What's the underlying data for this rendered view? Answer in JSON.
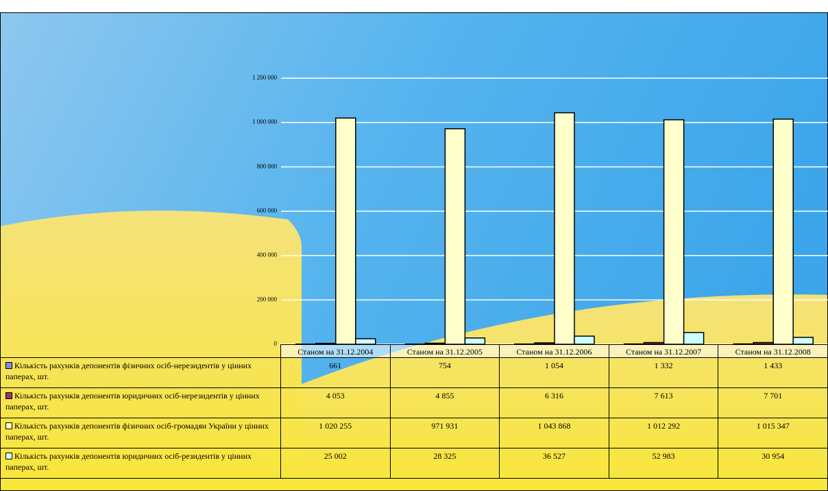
{
  "chart_data": {
    "type": "bar",
    "categories": [
      "Станом на 31.12.2004",
      "Станом на 31.12.2005",
      "Станом на 31.12.2006",
      "Станом на 31.12.2007",
      "Станом на 31.12.2008"
    ],
    "series": [
      {
        "name": "Кількість рахунків депонентів фізичних осіб-нерезидентів у цінних паперах, шт.",
        "color": "#7f8fdf",
        "values": [
          661,
          754,
          1054,
          1332,
          1433
        ],
        "value_labels": [
          "661",
          "754",
          "1 054",
          "1 332",
          "1 433"
        ]
      },
      {
        "name": "Кількість рахунків депонентів юридичних осіб-нерезидентів у цінних паперах, шт.",
        "color": "#993366",
        "values": [
          4053,
          4855,
          6316,
          7613,
          7701
        ],
        "value_labels": [
          "4 053",
          "4 855",
          "6 316",
          "7 613",
          "7 701"
        ]
      },
      {
        "name": "Кількість рахунків депонентів фізичних осіб-громадян України у цінних паперах, шт.",
        "color": "#ffffcc",
        "values": [
          1020255,
          971931,
          1043868,
          1012292,
          1015347
        ],
        "value_labels": [
          "1 020 255",
          "971 931",
          "1 043 868",
          "1 012 292",
          "1 015 347"
        ]
      },
      {
        "name": "Кількість рахунків депонентів юридичних осіб-резидентів у цінних паперах, шт.",
        "color": "#ccffff",
        "values": [
          25002,
          28325,
          36527,
          52983,
          30954
        ],
        "value_labels": [
          "25 002",
          "28 325",
          "36 527",
          "52 983",
          "30 954"
        ]
      }
    ],
    "ylim": [
      0,
      1200000
    ],
    "yticks": [
      0,
      {
        "value": 200000,
        "label": "200 000"
      },
      {
        "value": 400000,
        "label": "400 000"
      },
      {
        "value": 600000,
        "label": "600 000"
      },
      {
        "value": 800000,
        "label": "800 000"
      },
      {
        "value": 1000000,
        "label": "1 000 000"
      },
      {
        "value": 1200000,
        "label": "1 200 000"
      }
    ],
    "grid": true
  }
}
